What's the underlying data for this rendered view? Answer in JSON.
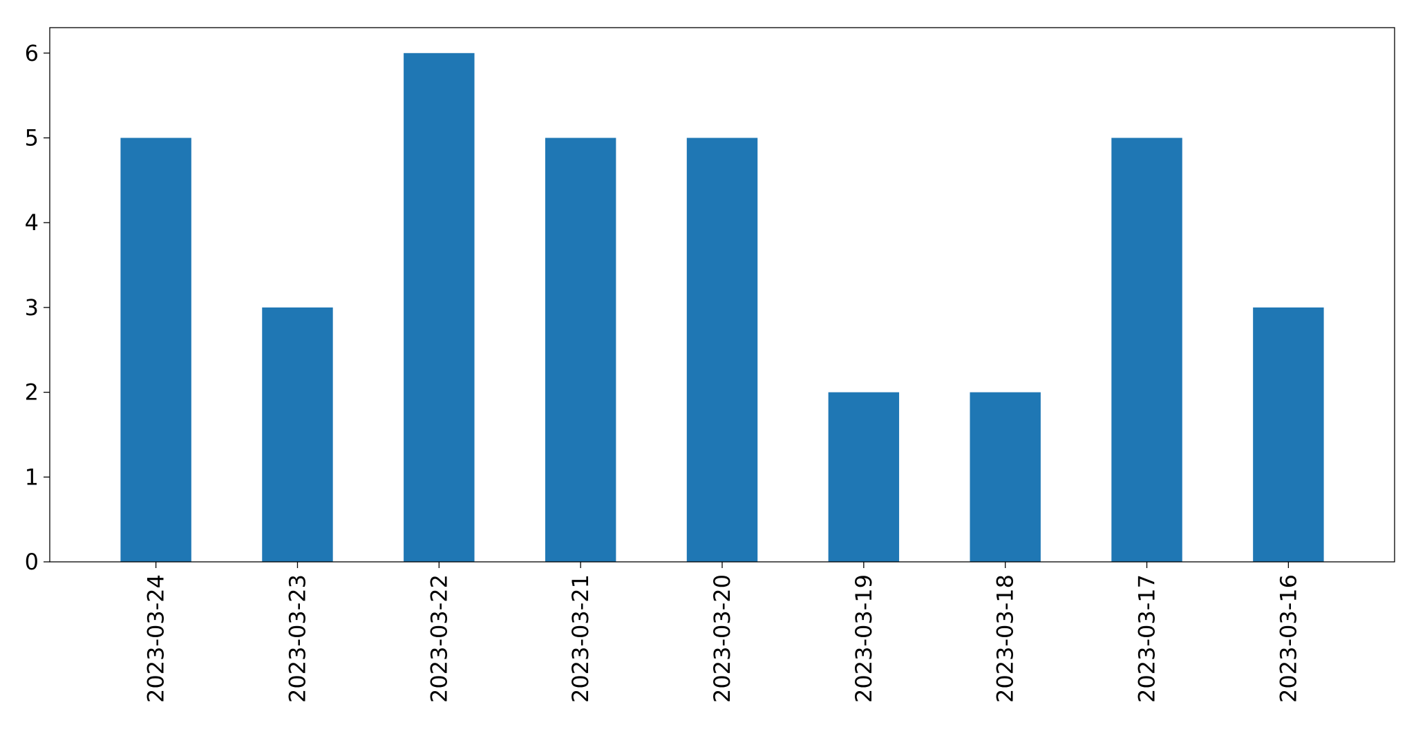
{
  "chart_data": {
    "type": "bar",
    "categories": [
      "2023-03-24",
      "2023-03-23",
      "2023-03-22",
      "2023-03-21",
      "2023-03-20",
      "2023-03-19",
      "2023-03-18",
      "2023-03-17",
      "2023-03-16"
    ],
    "values": [
      5,
      3,
      6,
      5,
      5,
      2,
      2,
      5,
      3
    ],
    "title": "",
    "xlabel": "",
    "ylabel": "",
    "ylim": [
      0,
      6.3
    ],
    "yticks": [
      0,
      1,
      2,
      3,
      4,
      5,
      6
    ],
    "grid": false,
    "bar_color": "#1f77b4"
  }
}
